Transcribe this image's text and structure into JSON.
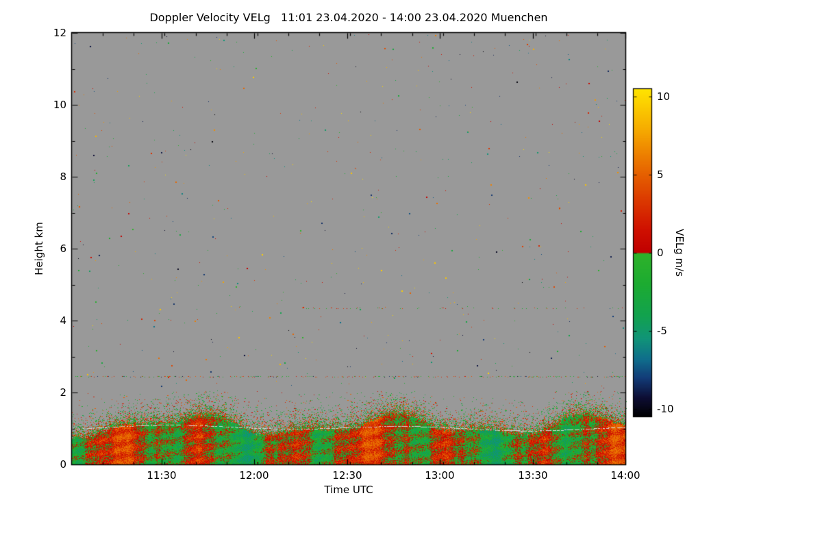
{
  "chart_data": {
    "type": "heatmap",
    "title": "Doppler Velocity VELg   11:01 23.04.2020 - 14:00 23.04.2020 Muenchen",
    "xlabel": "Time UTC",
    "ylabel": "Height km",
    "station": "Muenchen",
    "date": "23.04.2020",
    "time_start": "11:01",
    "time_end": "14:00",
    "x_ticks": [
      {
        "label": "11:30",
        "minutes_from_start": 29
      },
      {
        "label": "12:00",
        "minutes_from_start": 59
      },
      {
        "label": "12:30",
        "minutes_from_start": 89
      },
      {
        "label": "13:00",
        "minutes_from_start": 119
      },
      {
        "label": "13:30",
        "minutes_from_start": 149
      },
      {
        "label": "14:00",
        "minutes_from_start": 179
      }
    ],
    "x_total_minutes": 179,
    "x_minor_tick_minutes": 10,
    "y_range_km": [
      0,
      12
    ],
    "y_ticks_km": [
      0,
      2,
      4,
      6,
      8,
      10,
      12
    ],
    "y_minor_tick_km": 1,
    "grid": false,
    "no_data_color": "#999999",
    "colorbar": {
      "label": "VELg m/s",
      "ticks": [
        10,
        5,
        0,
        -5,
        -10
      ],
      "value_range": [
        -10.5,
        10.5
      ],
      "position": "right",
      "stops": [
        [
          -10.5,
          "#000000"
        ],
        [
          -9.3,
          "#0d0d33"
        ],
        [
          -8.0,
          "#123c78"
        ],
        [
          -6.8,
          "#0f6e8c"
        ],
        [
          -5.5,
          "#109478"
        ],
        [
          -4.0,
          "#12a24e"
        ],
        [
          -2.0,
          "#1cab31"
        ],
        [
          -0.05,
          "#2eb22a"
        ],
        [
          0.05,
          "#c00000"
        ],
        [
          1.5,
          "#cf1000"
        ],
        [
          3.5,
          "#dc3c00"
        ],
        [
          5.0,
          "#e55f00"
        ],
        [
          6.5,
          "#ee8500"
        ],
        [
          8.0,
          "#f6ad00"
        ],
        [
          10.5,
          "#ffe400"
        ]
      ]
    },
    "data_summary": {
      "background": "uniform gray = no detectable signal",
      "boundary_layer": "continuous echo from 0 to ~1.5 km with alternating downdraft (red, positive) and updraft (green, negative) vertical streaks, |VELg| mostly 0.5-5 m/s",
      "patchy_zone": "broken green/orange patches thinning out between ~1.1 and ~2.0 km",
      "light_band": "thin light-gray wavy band near 1.0 km",
      "dotted_line_km": 2.45,
      "faint_dotted_line_km": 4.35,
      "noise": "isolated random-colored speckles scattered from ~2 to 12 km over the full velocity range"
    },
    "render_params": {
      "seed": 20200423,
      "speckle_count": 700,
      "band_top_km_mean": 1.08,
      "patchy_top_km": 2.05,
      "light_line_km": 1.02,
      "light_line_color": "#d4d4d4"
    }
  }
}
